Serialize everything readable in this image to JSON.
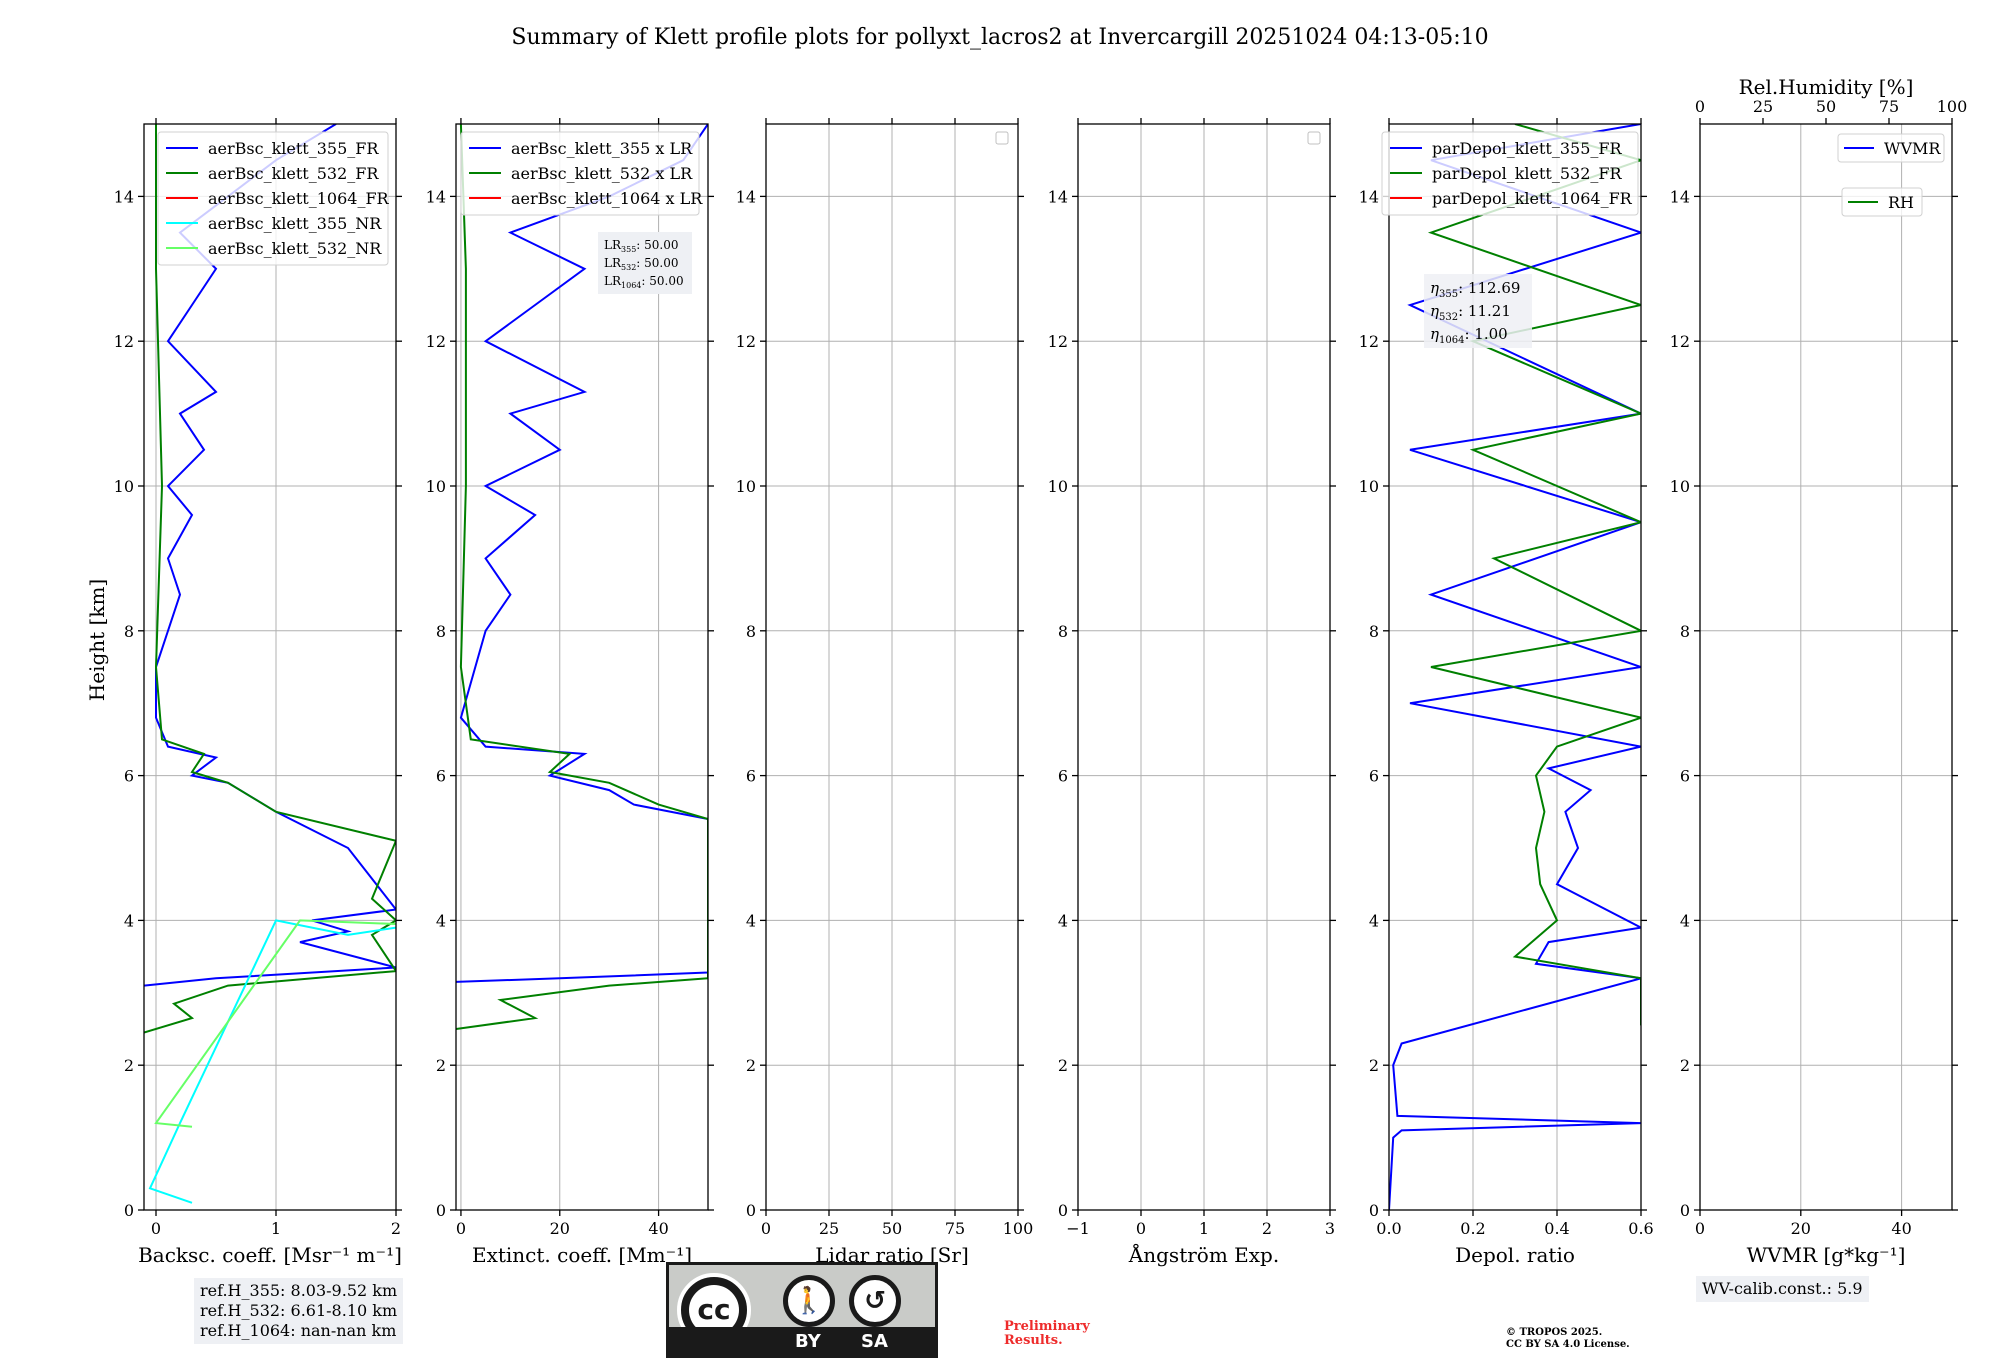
{
  "title": "Summary of Klett profile plots for pollyxt_lacros2 at Invercargill 20251024 04:13-05:10",
  "y_axis_label": "Height [km]",
  "colors": {
    "blue": "#0000ff",
    "green": "#008000",
    "red": "#ff0000",
    "cyan": "#00ffff",
    "lightgreen": "#66ff66",
    "grid": "#b0b0b0",
    "prelim": "#ee2b2b"
  },
  "panels": [
    {
      "id": "backscatter",
      "xlabel": "Backsc. coeff. [Msr⁻¹ m⁻¹]",
      "xlim": [
        -0.1,
        2
      ],
      "xticks": [
        0,
        1,
        2
      ],
      "xticklabels": [
        "0",
        "1",
        "2"
      ],
      "legend": [
        {
          "label": "aerBsc_klett_355_FR",
          "color": "#0000ff"
        },
        {
          "label": "aerBsc_klett_532_FR",
          "color": "#008000"
        },
        {
          "label": "aerBsc_klett_1064_FR",
          "color": "#ff0000"
        },
        {
          "label": "aerBsc_klett_355_NR",
          "color": "#00ffff"
        },
        {
          "label": "aerBsc_klett_532_NR",
          "color": "#66ff66"
        }
      ]
    },
    {
      "id": "extinction",
      "xlabel": "Extinct. coeff. [Mm⁻¹]",
      "xlim": [
        -1,
        50
      ],
      "xticks": [
        0,
        20,
        40
      ],
      "xticklabels": [
        "0",
        "20",
        "40"
      ],
      "legend": [
        {
          "label": "aerBsc_klett_355 x LR",
          "color": "#0000ff"
        },
        {
          "label": "aerBsc_klett_532 x LR",
          "color": "#008000"
        },
        {
          "label": "aerBsc_klett_1064 x LR",
          "color": "#ff0000"
        }
      ]
    },
    {
      "id": "lidar-ratio",
      "xlabel": "Lidar ratio [Sr]",
      "xlim": [
        0,
        100
      ],
      "xticks": [
        0,
        25,
        50,
        75,
        100
      ],
      "xticklabels": [
        "0",
        "25",
        "50",
        "75",
        "100"
      ],
      "legend": []
    },
    {
      "id": "angstrom",
      "xlabel": "Ångström Exp.",
      "xlim": [
        -1,
        3
      ],
      "xticks": [
        -1,
        0,
        1,
        2,
        3
      ],
      "xticklabels": [
        "−1",
        "0",
        "1",
        "2",
        "3"
      ],
      "legend": []
    },
    {
      "id": "depol",
      "xlabel": "Depol. ratio",
      "xlim": [
        0,
        0.6
      ],
      "xticks": [
        0,
        0.2,
        0.4,
        0.6
      ],
      "xticklabels": [
        "0.0",
        "0.2",
        "0.4",
        "0.6"
      ],
      "legend": [
        {
          "label": "parDepol_klett_355_FR",
          "color": "#0000ff"
        },
        {
          "label": "parDepol_klett_532_FR",
          "color": "#008000"
        },
        {
          "label": "parDepol_klett_1064_FR",
          "color": "#ff0000"
        }
      ]
    },
    {
      "id": "wvmr",
      "xlabel": "WVMR [g*kg⁻¹]",
      "xlim": [
        0,
        50
      ],
      "xticks": [
        0,
        20,
        40
      ],
      "xticklabels": [
        "0",
        "20",
        "40"
      ],
      "top_label": "Rel.Humidity [%]",
      "top_ticks": [
        "0",
        "25",
        "50",
        "75",
        "100"
      ],
      "legend": [
        {
          "label": "WVMR",
          "color": "#0000ff"
        },
        {
          "label": "RH",
          "color": "#008000"
        }
      ]
    }
  ],
  "yticks": [
    "0",
    "2",
    "4",
    "6",
    "8",
    "10",
    "12",
    "14"
  ],
  "lr_box": {
    "lines": [
      {
        "sub": "355",
        "value": ": 50.00"
      },
      {
        "sub": "532",
        "value": ": 50.00"
      },
      {
        "sub": "1064",
        "value": ": 50.00"
      }
    ]
  },
  "eta_box": {
    "lines": [
      {
        "sub": "355",
        "value": ": 112.69"
      },
      {
        "sub": "532",
        "value": ": 11.21"
      },
      {
        "sub": "1064",
        "value": ": 1.00"
      }
    ]
  },
  "ref_box": [
    "ref.H_355: 8.03-9.52 km",
    "ref.H_532: 6.61-8.10 km",
    "ref.H_1064: nan-nan km"
  ],
  "wv_box": "WV-calib.const.: 5.9",
  "license_badge": {
    "by": "BY",
    "sa": "SA",
    "cc": "cc"
  },
  "preliminary": [
    "Preliminary",
    "Results."
  ],
  "copyright": [
    "© TROPOS 2025.",
    "CC BY SA 4.0 License."
  ],
  "chart_data": [
    {
      "type": "line",
      "title": "Backsc. coeff.",
      "xlabel": "Backsc. coeff. [Msr⁻¹ m⁻¹]",
      "ylabel": "Height [km]",
      "xlim": [
        -0.1,
        2
      ],
      "ylim": [
        0,
        15
      ],
      "series": [
        {
          "name": "aerBsc_klett_355_FR",
          "color": "#0000ff",
          "points": [
            [
              -0.1,
              3.1
            ],
            [
              0.5,
              3.2
            ],
            [
              2,
              3.35
            ],
            [
              1.2,
              3.7
            ],
            [
              1.6,
              3.85
            ],
            [
              1.3,
              4.0
            ],
            [
              2,
              4.15
            ],
            [
              1.6,
              5.0
            ],
            [
              1.0,
              5.5
            ],
            [
              0.8,
              5.7
            ],
            [
              0.6,
              5.9
            ],
            [
              0.3,
              6.0
            ],
            [
              0.5,
              6.25
            ],
            [
              0.1,
              6.4
            ],
            [
              0,
              6.8
            ],
            [
              0,
              7.5
            ],
            [
              0.1,
              8.0
            ],
            [
              0.2,
              8.5
            ],
            [
              0.1,
              9.0
            ],
            [
              0.3,
              9.6
            ],
            [
              0.1,
              10.0
            ],
            [
              0.4,
              10.5
            ],
            [
              0.2,
              11.0
            ],
            [
              0.5,
              11.3
            ],
            [
              0.1,
              12.0
            ],
            [
              0.3,
              12.5
            ],
            [
              0.5,
              13.0
            ],
            [
              0.2,
              13.5
            ],
            [
              0.6,
              14.0
            ],
            [
              1.0,
              14.5
            ],
            [
              1.5,
              15.0
            ]
          ]
        },
        {
          "name": "aerBsc_klett_532_FR",
          "color": "#008000",
          "points": [
            [
              -0.1,
              2.45
            ],
            [
              0.3,
              2.65
            ],
            [
              0.15,
              2.85
            ],
            [
              0.6,
              3.1
            ],
            [
              2,
              3.3
            ],
            [
              1.8,
              3.8
            ],
            [
              2,
              4.0
            ],
            [
              1.8,
              4.3
            ],
            [
              2,
              5.1
            ],
            [
              1.0,
              5.5
            ],
            [
              0.8,
              5.7
            ],
            [
              0.6,
              5.9
            ],
            [
              0.3,
              6.05
            ],
            [
              0.4,
              6.3
            ],
            [
              0.05,
              6.5
            ],
            [
              0,
              7.5
            ],
            [
              0.05,
              10
            ],
            [
              0,
              13
            ],
            [
              0,
              15
            ]
          ]
        },
        {
          "name": "aerBsc_klett_355_NR",
          "color": "#00ffff",
          "points": [
            [
              0.3,
              0.1
            ],
            [
              -0.05,
              0.3
            ],
            [
              0.2,
              1.2
            ],
            [
              1.0,
              4.0
            ],
            [
              1.6,
              3.8
            ],
            [
              2,
              3.9
            ]
          ]
        },
        {
          "name": "aerBsc_klett_532_NR",
          "color": "#66ff66",
          "points": [
            [
              0.3,
              1.15
            ],
            [
              0,
              1.2
            ],
            [
              1.2,
              4.0
            ],
            [
              2,
              3.95
            ]
          ]
        }
      ]
    },
    {
      "type": "line",
      "title": "Extinct. coeff.",
      "xlabel": "Extinct. coeff. [Mm⁻¹]",
      "ylabel": "Height [km]",
      "xlim": [
        -1,
        50
      ],
      "ylim": [
        0,
        15
      ],
      "series": [
        {
          "name": "aerBsc_klett_355 x LR",
          "color": "#0000ff",
          "points": [
            [
              -1,
              3.15
            ],
            [
              20,
              3.2
            ],
            [
              50,
              3.28
            ],
            [
              50,
              5.4
            ],
            [
              35,
              5.6
            ],
            [
              30,
              5.8
            ],
            [
              18,
              6.0
            ],
            [
              25,
              6.3
            ],
            [
              5,
              6.4
            ],
            [
              0,
              6.8
            ],
            [
              5,
              8.0
            ],
            [
              10,
              8.5
            ],
            [
              5,
              9.0
            ],
            [
              15,
              9.6
            ],
            [
              5,
              10.0
            ],
            [
              20,
              10.5
            ],
            [
              10,
              11.0
            ],
            [
              25,
              11.3
            ],
            [
              5,
              12.0
            ],
            [
              15,
              12.5
            ],
            [
              25,
              13.0
            ],
            [
              10,
              13.5
            ],
            [
              30,
              14.0
            ],
            [
              45,
              14.5
            ],
            [
              50,
              15.0
            ]
          ]
        },
        {
          "name": "aerBsc_klett_532 x LR",
          "color": "#008000",
          "points": [
            [
              -1,
              2.5
            ],
            [
              15,
              2.65
            ],
            [
              8,
              2.9
            ],
            [
              30,
              3.1
            ],
            [
              50,
              3.2
            ],
            [
              50,
              5.4
            ],
            [
              40,
              5.6
            ],
            [
              30,
              5.9
            ],
            [
              18,
              6.05
            ],
            [
              22,
              6.3
            ],
            [
              2,
              6.5
            ],
            [
              0,
              7.5
            ],
            [
              1,
              10
            ],
            [
              1,
              13
            ],
            [
              0,
              15
            ]
          ]
        }
      ]
    },
    {
      "type": "line",
      "title": "Lidar ratio",
      "xlabel": "Lidar ratio [Sr]",
      "ylabel": "Height [km]",
      "xlim": [
        0,
        100
      ],
      "ylim": [
        0,
        15
      ],
      "series": []
    },
    {
      "type": "line",
      "title": "Ångström Exp.",
      "xlabel": "Ångström Exp.",
      "ylabel": "Height [km]",
      "xlim": [
        -1,
        3
      ],
      "ylim": [
        0,
        15
      ],
      "series": []
    },
    {
      "type": "line",
      "title": "Depol. ratio",
      "xlabel": "Depol. ratio",
      "ylabel": "Height [km]",
      "xlim": [
        0,
        0.6
      ],
      "ylim": [
        0,
        15
      ],
      "series": [
        {
          "name": "parDepol_klett_355_FR",
          "color": "#0000ff",
          "points": [
            [
              0,
              0
            ],
            [
              0.01,
              1.0
            ],
            [
              0.03,
              1.1
            ],
            [
              0.6,
              1.2
            ],
            [
              0.02,
              1.3
            ],
            [
              0.01,
              2.0
            ],
            [
              0.03,
              2.3
            ],
            [
              0.6,
              3.2
            ],
            [
              0.35,
              3.4
            ],
            [
              0.38,
              3.7
            ],
            [
              0.6,
              3.9
            ],
            [
              0.4,
              4.5
            ],
            [
              0.45,
              5.0
            ],
            [
              0.42,
              5.5
            ],
            [
              0.48,
              5.8
            ],
            [
              0.38,
              6.1
            ],
            [
              0.6,
              6.4
            ],
            [
              0.05,
              7.0
            ],
            [
              0.6,
              7.5
            ],
            [
              0.1,
              8.5
            ],
            [
              0.6,
              9.5
            ],
            [
              0.05,
              10.5
            ],
            [
              0.6,
              11.0
            ],
            [
              0.05,
              12.5
            ],
            [
              0.6,
              13.5
            ],
            [
              0.1,
              14.5
            ],
            [
              0.6,
              15.0
            ]
          ]
        },
        {
          "name": "parDepol_klett_532_FR",
          "color": "#008000",
          "points": [
            [
              0.6,
              2.55
            ],
            [
              0.6,
              3.2
            ],
            [
              0.3,
              3.5
            ],
            [
              0.4,
              4.0
            ],
            [
              0.36,
              4.5
            ],
            [
              0.35,
              5.0
            ],
            [
              0.37,
              5.5
            ],
            [
              0.35,
              6.0
            ],
            [
              0.4,
              6.4
            ],
            [
              0.6,
              6.8
            ],
            [
              0.1,
              7.5
            ],
            [
              0.6,
              8.0
            ],
            [
              0.25,
              9.0
            ],
            [
              0.6,
              9.5
            ],
            [
              0.2,
              10.5
            ],
            [
              0.6,
              11.0
            ],
            [
              0.2,
              12.0
            ],
            [
              0.6,
              12.5
            ],
            [
              0.1,
              13.5
            ],
            [
              0.6,
              14.5
            ],
            [
              0.3,
              15.0
            ]
          ]
        }
      ]
    },
    {
      "type": "line",
      "title": "WVMR",
      "xlabel": "WVMR [g*kg⁻¹]",
      "ylabel": "Height [km]",
      "xlim": [
        0,
        50
      ],
      "ylim": [
        0,
        15
      ],
      "top_axis": {
        "label": "Rel.Humidity [%]",
        "lim": [
          0,
          100
        ]
      },
      "series": []
    }
  ]
}
